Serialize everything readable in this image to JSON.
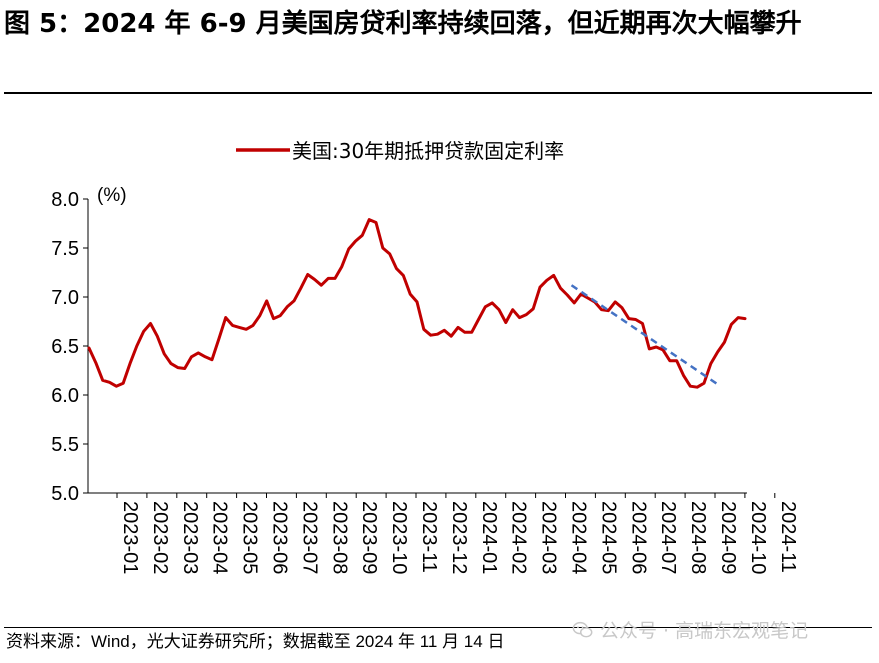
{
  "title": "图 5：2024 年 6-9 月美国房贷利率持续回落，但近期再次大幅攀升",
  "source_note": "资料来源：Wind，光大证券研究所；数据截至 2024 年 11 月 14 日",
  "watermark": {
    "text": "公众号 · 高瑞东宏观笔记",
    "icon": "wechat-icon"
  },
  "colors": {
    "series": "#c00000",
    "trend": "#4472c4",
    "axis": "#000000"
  },
  "chart_data": {
    "type": "line",
    "title": "",
    "xlabel": "",
    "ylabel": "(%)",
    "ylim": [
      5.0,
      8.0
    ],
    "yticks": [
      5.0,
      5.5,
      6.0,
      6.5,
      7.0,
      7.5,
      8.0
    ],
    "ytick_labels": [
      "5.0",
      "5.5",
      "6.0",
      "6.5",
      "7.0",
      "7.5",
      "8.0"
    ],
    "xtick_labels": [
      "2023-01",
      "2023-02",
      "2023-03",
      "2023-04",
      "2023-05",
      "2023-06",
      "2023-07",
      "2023-08",
      "2023-09",
      "2023-10",
      "2023-11",
      "2023-12",
      "2024-01",
      "2024-02",
      "2024-03",
      "2024-04",
      "2024-05",
      "2024-06",
      "2024-07",
      "2024-08",
      "2024-09",
      "2024-10",
      "2024-11"
    ],
    "legend": {
      "placement": "top-center"
    },
    "grid": false,
    "series": [
      {
        "name": "美国:30年期抵押贷款固定利率",
        "values": [
          6.48,
          6.33,
          6.15,
          6.13,
          6.09,
          6.12,
          6.32,
          6.5,
          6.65,
          6.73,
          6.6,
          6.42,
          6.32,
          6.28,
          6.27,
          6.39,
          6.43,
          6.39,
          6.36,
          6.57,
          6.79,
          6.71,
          6.69,
          6.67,
          6.71,
          6.81,
          6.96,
          6.78,
          6.81,
          6.9,
          6.96,
          7.09,
          7.23,
          7.18,
          7.12,
          7.19,
          7.19,
          7.31,
          7.49,
          7.57,
          7.63,
          7.79,
          7.76,
          7.5,
          7.44,
          7.29,
          7.22,
          7.03,
          6.95,
          6.67,
          6.61,
          6.62,
          6.66,
          6.6,
          6.69,
          6.64,
          6.64,
          6.77,
          6.9,
          6.94,
          6.87,
          6.74,
          6.87,
          6.79,
          6.82,
          6.88,
          7.1,
          7.17,
          7.22,
          7.09,
          7.02,
          6.94,
          7.03,
          6.99,
          6.95,
          6.87,
          6.86,
          6.95,
          6.89,
          6.78,
          6.77,
          6.73,
          6.47,
          6.49,
          6.46,
          6.35,
          6.35,
          6.2,
          6.09,
          6.08,
          6.12,
          6.32,
          6.44,
          6.54,
          6.72,
          6.79,
          6.78
        ]
      }
    ],
    "annotations": [
      {
        "type": "dashed-trendline",
        "from": {
          "x": "2024-04",
          "y": 7.12
        },
        "to": {
          "x": "2024-09",
          "y": 6.1
        }
      }
    ]
  }
}
